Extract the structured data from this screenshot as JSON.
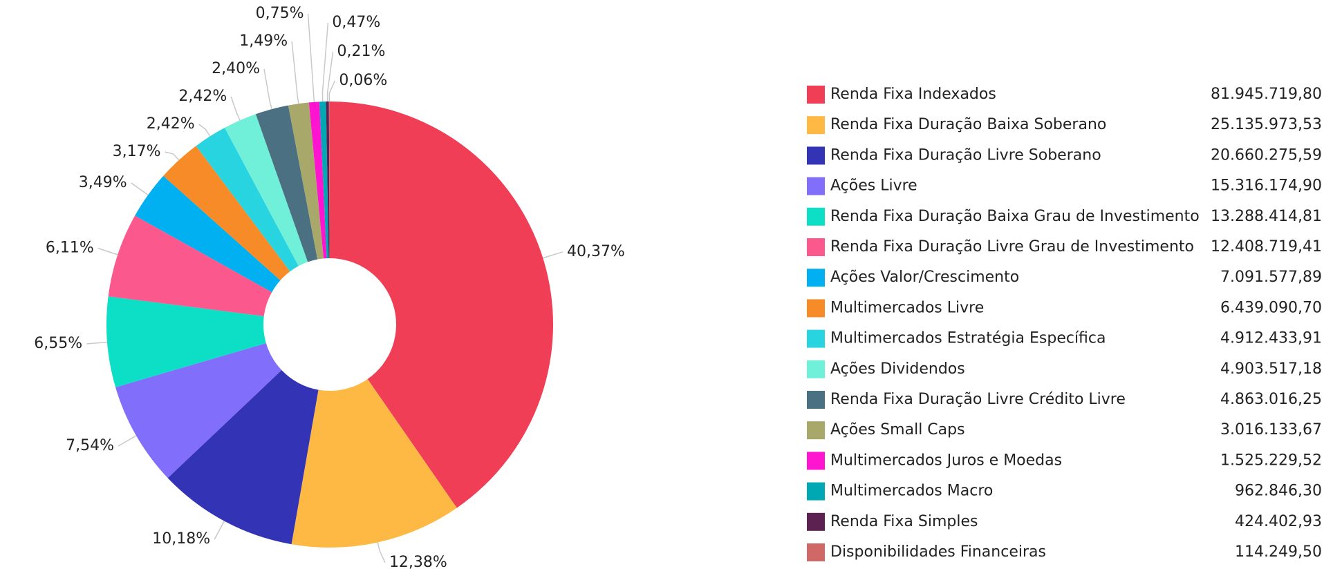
{
  "chart_data": {
    "type": "pie",
    "categories": [
      "Renda Fixa Indexados",
      "Renda Fixa Duração Baixa Soberano",
      "Renda Fixa Duração Livre Soberano",
      "Ações Livre",
      "Renda Fixa Duração Baixa Grau de Investimento",
      "Renda Fixa Duração Livre Grau de Investimento",
      "Ações Valor/Crescimento",
      "Multimercados Livre",
      "Multimercados Estratégia Específica",
      "Ações Dividendos",
      "Renda Fixa Duração Livre Crédito Livre",
      "Ações Small Caps",
      "Multimercados Juros e Moedas",
      "Multimercados Macro",
      "Renda Fixa Simples",
      "Disponibilidades Financeiras"
    ],
    "values": [
      40.37,
      12.38,
      10.18,
      7.54,
      6.55,
      6.11,
      3.49,
      3.17,
      2.42,
      2.42,
      2.4,
      1.49,
      0.75,
      0.47,
      0.21,
      0.06
    ],
    "value_labels": [
      "40,37%",
      "12,38%",
      "10,18%",
      "7,54%",
      "6,55%",
      "6,11%",
      "3,49%",
      "3,17%",
      "2,42%",
      "2,42%",
      "2,40%",
      "1,49%",
      "0,75%",
      "0,47%",
      "0,21%",
      "0,06%"
    ],
    "amount_labels": [
      "81.945.719,80",
      "25.135.973,53",
      "20.660.275,59",
      "15.316.174,90",
      "13.288.414,81",
      "12.408.719,41",
      "7.091.577,89",
      "6.439.090,70",
      "4.912.433,91",
      "4.903.517,18",
      "4.863.016,25",
      "3.016.133,67",
      "1.525.229,52",
      "962.846,30",
      "424.402,93",
      "114.249,50"
    ],
    "colors": [
      "#ef3e55",
      "#feb945",
      "#3333b5",
      "#816ffb",
      "#0ddfc6",
      "#fb588e",
      "#00b0f0",
      "#f68b28",
      "#28d4e0",
      "#70f0d8",
      "#4a7082",
      "#a7a86a",
      "#ff14cf",
      "#00a8b4",
      "#5c2150",
      "#d06868"
    ]
  }
}
